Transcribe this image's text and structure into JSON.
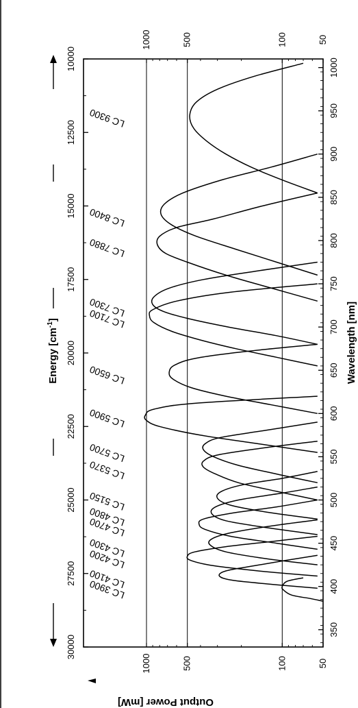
{
  "chart_data": {
    "type": "line",
    "orientation": "rotated 90° counter-clockwise (wavelength runs downward-to-upward along page height)",
    "top_axis": {
      "label": "Energy [cm",
      "label_sup": "-1",
      "label_end": "]",
      "ticks": [
        "10000",
        "12500",
        "15000",
        "17500",
        "20000",
        "22500",
        "25000",
        "27500",
        "30000"
      ]
    },
    "bottom_axis": {
      "label": "Wavelength [nm]",
      "ticks": [
        "350",
        "400",
        "450",
        "500",
        "550",
        "600",
        "650",
        "700",
        "750",
        "800",
        "850",
        "900",
        "950",
        "1000"
      ]
    },
    "power_axis": {
      "label": "Output Power [mW]",
      "scale": "log",
      "range": [
        50,
        1000
      ],
      "ticks_left": [
        "1000",
        "500",
        "100",
        "50"
      ],
      "ticks_right": [
        "1000",
        "500",
        "100",
        "50"
      ],
      "gridlines": [
        1000,
        500,
        100
      ]
    },
    "series": [
      {
        "name": "LC 3900",
        "x": [
          383,
          386,
          390,
          396,
          400,
          406,
          410
        ],
        "y": [
          50,
          62,
          85,
          98,
          100,
          92,
          70
        ]
      },
      {
        "name": "LC 4100",
        "x": [
          398,
          402,
          407,
          412,
          418,
          424,
          430,
          436
        ],
        "y": [
          55,
          110,
          230,
          290,
          260,
          160,
          95,
          55
        ]
      },
      {
        "name": "LC 4200",
        "x": [
          412,
          418,
          424,
          430,
          435,
          440,
          446,
          452,
          458
        ],
        "y": [
          55,
          150,
          320,
          470,
          500,
          440,
          260,
          120,
          55
        ]
      },
      {
        "name": "LC 4300",
        "x": [
          425,
          432,
          440,
          448,
          455,
          462,
          470,
          477
        ],
        "y": [
          55,
          130,
          260,
          340,
          330,
          240,
          120,
          55
        ]
      },
      {
        "name": "LC 4700",
        "x": [
          443,
          450,
          458,
          466,
          472,
          478,
          485,
          492,
          500
        ],
        "y": [
          55,
          110,
          240,
          370,
          410,
          380,
          230,
          110,
          55
        ]
      },
      {
        "name": "LC 4800",
        "x": [
          460,
          468,
          476,
          484,
          492,
          500,
          508,
          515
        ],
        "y": [
          55,
          130,
          260,
          330,
          310,
          210,
          100,
          55
        ]
      },
      {
        "name": "LC 5150",
        "x": [
          478,
          486,
          494,
          502,
          510,
          518,
          525,
          533
        ],
        "y": [
          55,
          130,
          240,
          300,
          280,
          190,
          100,
          55
        ]
      },
      {
        "name": "LC 5370",
        "x": [
          500,
          510,
          520,
          530,
          538,
          545,
          552,
          560,
          568
        ],
        "y": [
          55,
          110,
          210,
          310,
          380,
          380,
          300,
          140,
          55
        ]
      },
      {
        "name": "LC 5700",
        "x": [
          520,
          530,
          540,
          550,
          558,
          565,
          572,
          580,
          590
        ],
        "y": [
          55,
          110,
          210,
          320,
          380,
          370,
          290,
          140,
          55
        ]
      },
      {
        "name": "LC 5900",
        "x": [
          555,
          565,
          575,
          585,
          592,
          598,
          605,
          612,
          620
        ],
        "y": [
          55,
          150,
          400,
          800,
          1000,
          1020,
          880,
          430,
          55
        ]
      },
      {
        "name": "LC 6500",
        "x": [
          600,
          610,
          620,
          630,
          640,
          648,
          656,
          664,
          672,
          680
        ],
        "y": [
          55,
          120,
          260,
          470,
          640,
          680,
          620,
          430,
          180,
          55
        ]
      },
      {
        "name": "LC 7100",
        "x": [
          655,
          665,
          675,
          685,
          695,
          705,
          713,
          720,
          730,
          740,
          750
        ],
        "y": [
          55,
          110,
          220,
          400,
          650,
          880,
          950,
          900,
          600,
          250,
          55
        ]
      },
      {
        "name": "LC 7300",
        "x": [
          680,
          690,
          700,
          710,
          718,
          726,
          735,
          745,
          755,
          765,
          775
        ],
        "y": [
          55,
          110,
          250,
          500,
          750,
          900,
          880,
          680,
          380,
          150,
          55
        ]
      },
      {
        "name": "LC 7880",
        "x": [
          730,
          745,
          760,
          775,
          785,
          795,
          805,
          815,
          825,
          840,
          855
        ],
        "y": [
          55,
          120,
          260,
          500,
          720,
          830,
          800,
          600,
          320,
          140,
          55
        ]
      },
      {
        "name": "LC 8400",
        "x": [
          760,
          775,
          790,
          805,
          818,
          830,
          842,
          855,
          870,
          885,
          900
        ],
        "y": [
          55,
          110,
          220,
          430,
          650,
          780,
          740,
          540,
          280,
          120,
          55
        ]
      },
      {
        "name": "LC 9300",
        "x": [
          855,
          870,
          885,
          900,
          915,
          930,
          945,
          960,
          975,
          990,
          1005
        ],
        "y": [
          55,
          100,
          170,
          260,
          360,
          450,
          480,
          430,
          300,
          160,
          70
        ]
      }
    ],
    "grid": true
  }
}
